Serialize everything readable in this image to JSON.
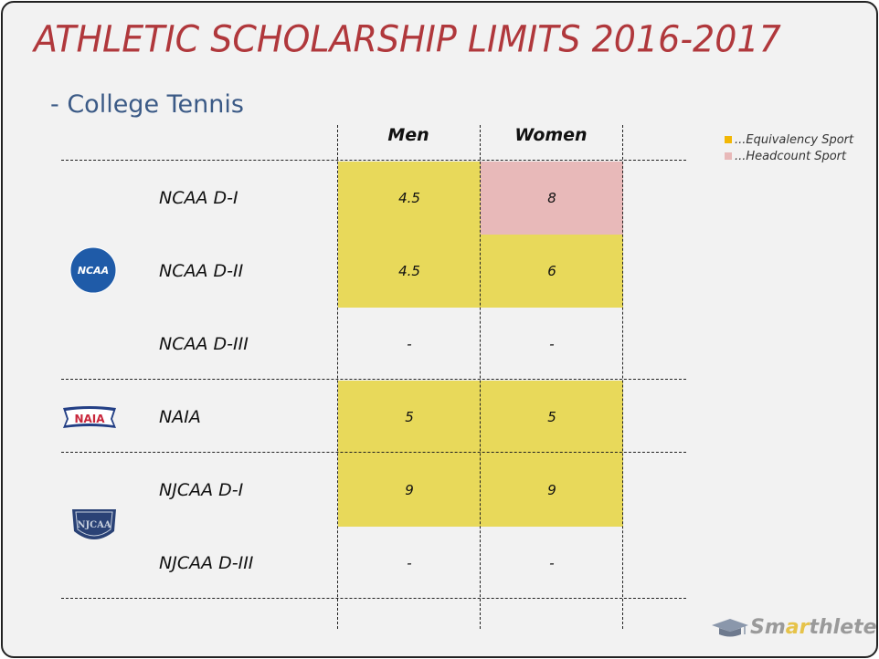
{
  "title": "ATHLETIC SCHOLARSHIP LIMITS 2016-2017",
  "subtitle": "- College Tennis",
  "legend": {
    "items": [
      {
        "label": "...Equivalency Sport",
        "color": "#f2b705"
      },
      {
        "label": "...Headcount Sport",
        "color": "#e8b9b9"
      }
    ]
  },
  "columns": {
    "men": "Men",
    "women": "Women"
  },
  "rows": [
    {
      "label": "NCAA D-I",
      "men": "4.5",
      "women": "8",
      "men_type": "equivalency",
      "women_type": "headcount"
    },
    {
      "label": "NCAA D-II",
      "men": "4.5",
      "women": "6",
      "men_type": "equivalency",
      "women_type": "equivalency"
    },
    {
      "label": "NCAA D-III",
      "men": "-",
      "women": "-",
      "men_type": "none",
      "women_type": "none"
    },
    {
      "label": "NAIA",
      "men": "5",
      "women": "5",
      "men_type": "equivalency",
      "women_type": "equivalency"
    },
    {
      "label": "NJCAA D-I",
      "men": "9",
      "women": "9",
      "men_type": "equivalency",
      "women_type": "equivalency"
    },
    {
      "label": "NJCAA D-III",
      "men": "-",
      "women": "-",
      "men_type": "none",
      "women_type": "none"
    }
  ],
  "colors": {
    "equivalency_fill": "#e8d95a",
    "headcount_fill": "#e8b9b9",
    "title": "#b0383c",
    "subtitle": "#3b5a86"
  },
  "logos": {
    "ncaa": "NCAA",
    "naia": "NAIA",
    "njcaa": "NJCAA"
  },
  "brand": {
    "prefix": "Sm",
    "accent": "ar",
    "suffix": "thlete"
  }
}
